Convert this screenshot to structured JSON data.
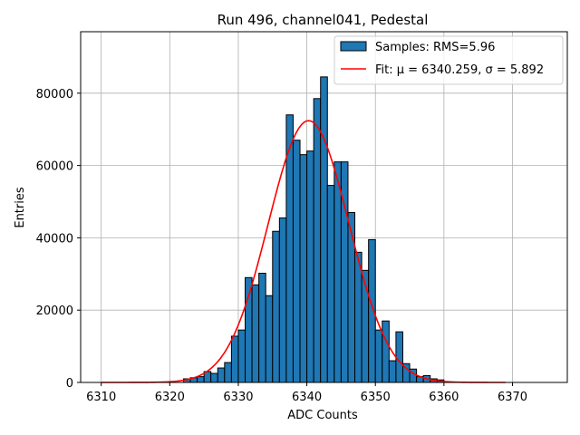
{
  "chart_data": {
    "type": "bar",
    "title": "Run 496, channel041, Pedestal",
    "xlabel": "ADC Counts",
    "ylabel": "Entries",
    "xlim": [
      6307,
      6378
    ],
    "ylim": [
      0,
      97000
    ],
    "grid": true,
    "legend_position": "top-right",
    "x_ticks": [
      6310,
      6320,
      6330,
      6340,
      6350,
      6360,
      6370
    ],
    "y_ticks": [
      0,
      20000,
      40000,
      60000,
      80000
    ],
    "x_tick_labels": [
      "6310",
      "6320",
      "6330",
      "6340",
      "6350",
      "6360",
      "6370"
    ],
    "y_tick_labels": [
      "0",
      "20000",
      "40000",
      "60000",
      "80000"
    ],
    "series": [
      {
        "name": "Samples: RMS=5.96",
        "kind": "histogram",
        "color": "#1f77b4",
        "edge_color": "#000000",
        "bin_width": 1,
        "bin_starts": [
          6322,
          6323,
          6324,
          6325,
          6326,
          6327,
          6328,
          6329,
          6330,
          6331,
          6332,
          6333,
          6334,
          6335,
          6336,
          6337,
          6338,
          6339,
          6340,
          6341,
          6342,
          6343,
          6344,
          6345,
          6346,
          6347,
          6348,
          6349,
          6350,
          6351,
          6352,
          6353,
          6354,
          6355,
          6356,
          6357,
          6358,
          6359
        ],
        "values": [
          1000,
          1300,
          1600,
          3000,
          2500,
          4000,
          5500,
          12800,
          14500,
          29000,
          27000,
          30200,
          24000,
          41800,
          45500,
          74000,
          67000,
          63000,
          64000,
          78500,
          84500,
          54500,
          61000,
          61000,
          47000,
          36000,
          31000,
          39500,
          14500,
          17000,
          6000,
          14000,
          5200,
          3700,
          1600,
          1900,
          1000,
          700
        ]
      },
      {
        "name": "Fit: μ = 6340.259, σ = 5.892",
        "kind": "gaussian",
        "color": "#ff0000",
        "mu": 6340.259,
        "sigma": 5.892,
        "amplitude": 72400,
        "x_range": [
          6310,
          6369
        ]
      }
    ]
  }
}
